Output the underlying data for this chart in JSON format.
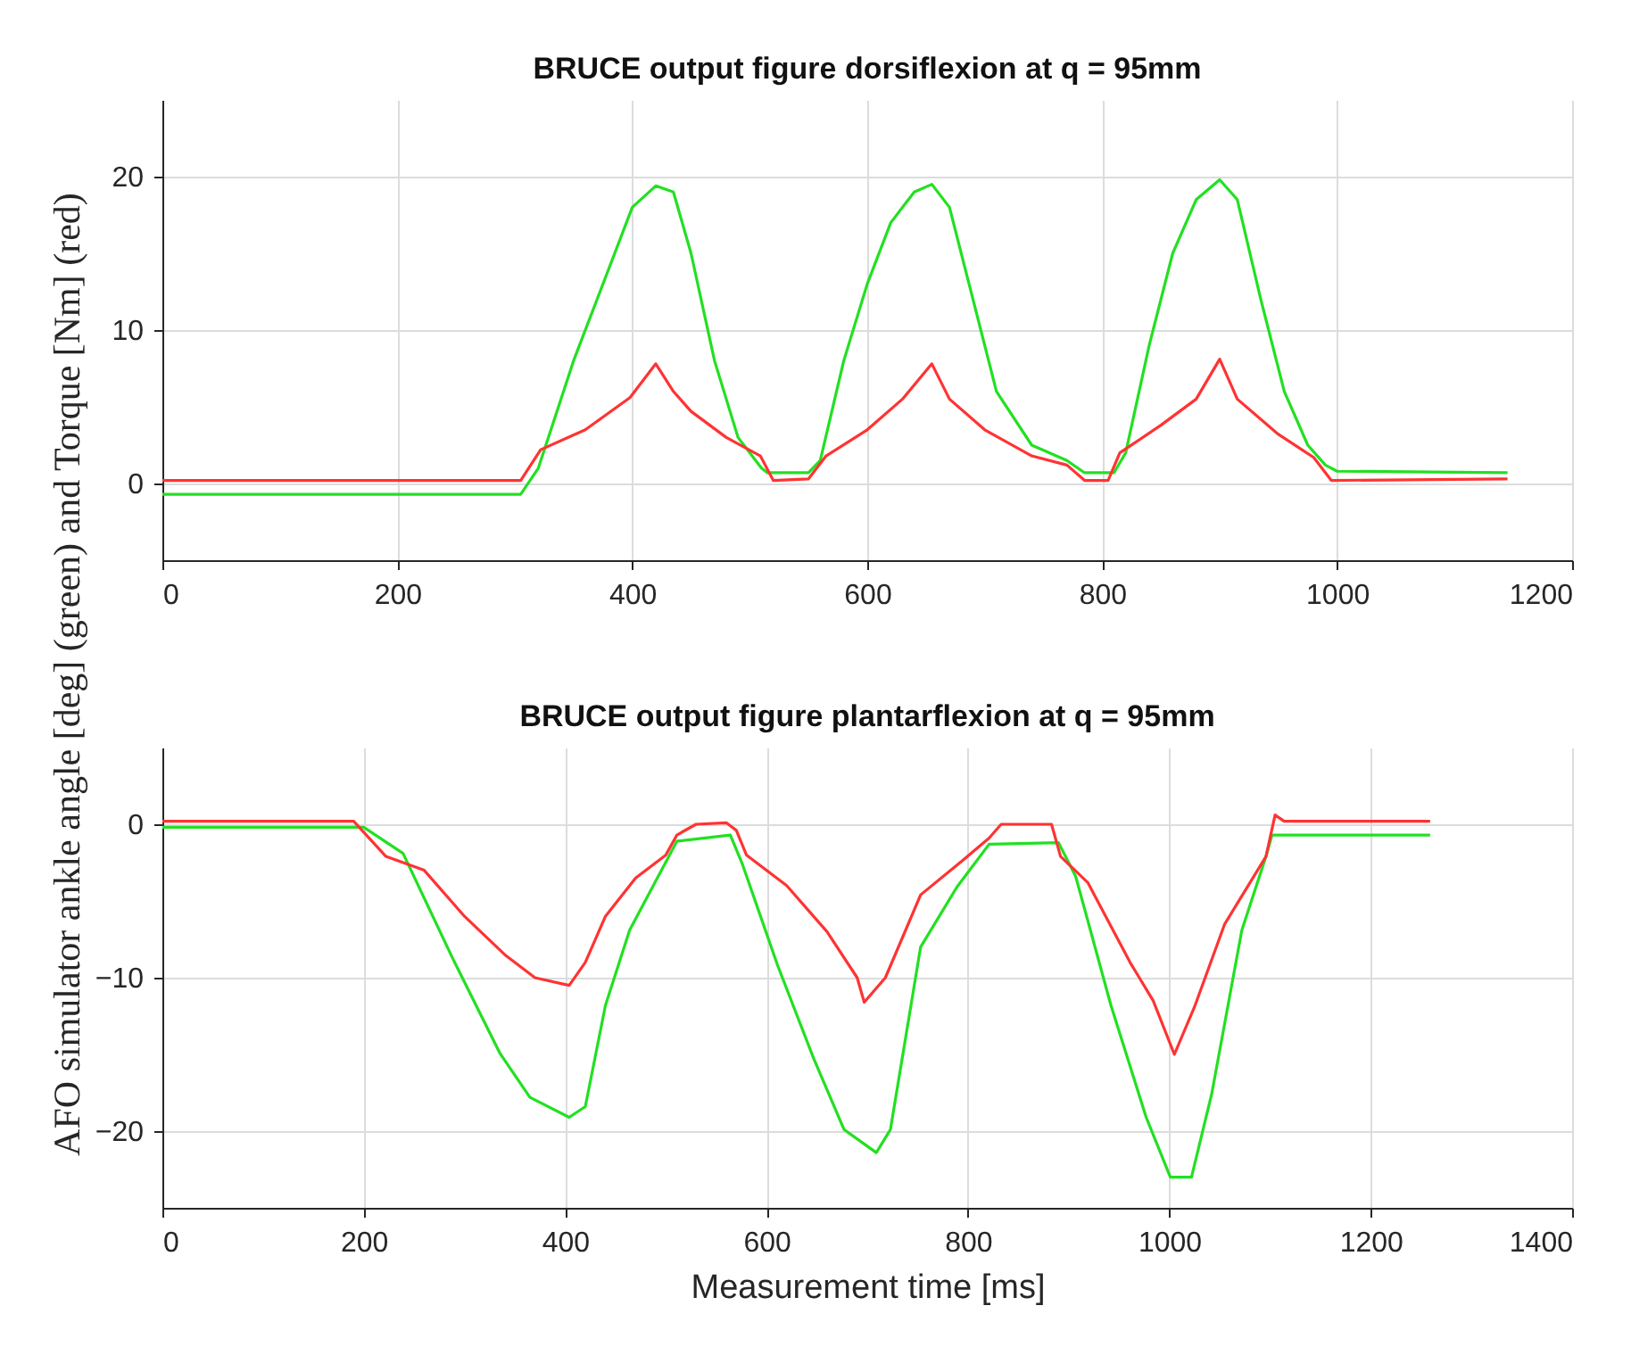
{
  "chart_data": [
    {
      "type": "line",
      "title": "BRUCE output figure dorsiflexion at q = 95mm",
      "ylabel": "AFO simulator ankle angle [deg] (green) and Torque [Nm] (red)",
      "xlim": [
        0,
        1200
      ],
      "xticks": [
        0,
        200,
        400,
        600,
        800,
        1000,
        1200
      ],
      "ylim": [
        -5,
        25
      ],
      "yticks": [
        0,
        10,
        20
      ],
      "grid": true,
      "series": [
        {
          "color": "#22e022",
          "x": [
            0,
            305,
            320,
            350,
            380,
            400,
            420,
            435,
            450,
            470,
            490,
            510,
            515,
            550,
            560,
            580,
            600,
            620,
            640,
            655,
            670,
            690,
            710,
            740,
            770,
            785,
            810,
            820,
            840,
            860,
            880,
            900,
            915,
            935,
            955,
            975,
            990,
            1000,
            1145
          ],
          "values": [
            -0.7,
            -0.7,
            1,
            8,
            14,
            18,
            19.4,
            19,
            15,
            8,
            3,
            1,
            0.7,
            0.7,
            1.5,
            8,
            13,
            17,
            19,
            19.5,
            18,
            12,
            6,
            2.5,
            1.5,
            0.7,
            0.7,
            2,
            9,
            15,
            18.5,
            19.8,
            18.5,
            12,
            6,
            2.5,
            1.2,
            0.8,
            0.7
          ]
        },
        {
          "color": "#ff3333",
          "x": [
            0,
            305,
            322,
            360,
            398,
            420,
            435,
            450,
            480,
            509,
            520,
            550,
            565,
            600,
            630,
            655,
            670,
            700,
            740,
            770,
            785,
            805,
            815,
            850,
            880,
            900,
            915,
            950,
            980,
            995,
            1145
          ],
          "values": [
            0.2,
            0.2,
            2.2,
            3.5,
            5.6,
            7.8,
            6,
            4.7,
            3,
            1.8,
            0.2,
            0.3,
            1.8,
            3.5,
            5.5,
            7.8,
            5.5,
            3.5,
            1.8,
            1.2,
            0.2,
            0.2,
            2,
            3.8,
            5.5,
            8.1,
            5.5,
            3.2,
            1.7,
            0.2,
            0.3
          ]
        }
      ]
    },
    {
      "type": "line",
      "title": "BRUCE output figure plantarflexion at q = 95mm",
      "xlabel": "Measurement time [ms]",
      "xlim": [
        0,
        1400
      ],
      "xticks": [
        0,
        200,
        400,
        600,
        800,
        1000,
        1200,
        1400
      ],
      "ylim": [
        -25,
        5
      ],
      "yticks": [
        -20,
        -10,
        0
      ],
      "grid": true,
      "series": [
        {
          "color": "#22e022",
          "x": [
            0,
            200,
            239,
            288,
            335,
            365,
            404,
            420,
            440,
            464,
            511,
            564,
            576,
            611,
            647,
            677,
            709,
            723,
            753,
            789,
            821,
            890,
            907,
            942,
            977,
            1001,
            1022,
            1042,
            1072,
            1096,
            1102,
            1259
          ],
          "values": [
            -0.2,
            -0.2,
            -1.9,
            -8.7,
            -14.9,
            -17.8,
            -19.1,
            -18.4,
            -11.8,
            -6.9,
            -1.1,
            -0.7,
            -2.6,
            -9.2,
            -15.3,
            -19.9,
            -21.4,
            -19.9,
            -8,
            -4.1,
            -1.3,
            -1.2,
            -3.4,
            -11.8,
            -19.1,
            -23,
            -23,
            -17.6,
            -6.9,
            -2.1,
            -0.7,
            -0.7
          ]
        },
        {
          "color": "#ff3333",
          "x": [
            0,
            190,
            222,
            260,
            300,
            340,
            370,
            404,
            420,
            440,
            470,
            500,
            511,
            530,
            560,
            570,
            580,
            620,
            660,
            690,
            697,
            718,
            753,
            794,
            821,
            833,
            883,
            892,
            919,
            961,
            984,
            1005,
            1025,
            1055,
            1096,
            1105,
            1114,
            1259
          ],
          "values": [
            0.2,
            0.2,
            -2.1,
            -3,
            -6,
            -8.5,
            -10,
            -10.5,
            -9,
            -6,
            -3.5,
            -2,
            -0.7,
            0,
            0.1,
            -0.4,
            -2,
            -4,
            -7,
            -10,
            -11.6,
            -10,
            -4.6,
            -2.4,
            -0.9,
            0,
            0,
            -2.1,
            -3.8,
            -9,
            -11.5,
            -15,
            -11.9,
            -6.5,
            -2.1,
            0.6,
            0.2,
            0.2
          ]
        }
      ]
    }
  ]
}
